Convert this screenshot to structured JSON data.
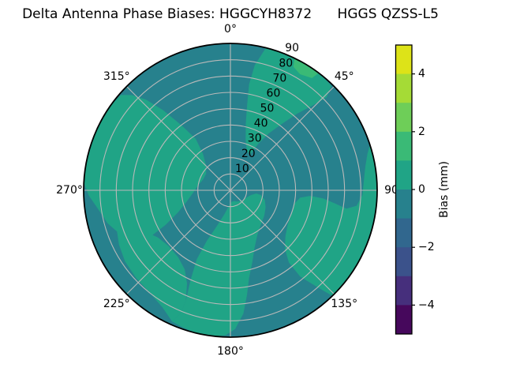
{
  "title": "Delta Antenna Phase Biases: HGGCYH8372      HGGS QZSS-L5",
  "chart_data": {
    "type": "heatmap",
    "subtype": "polar_filled_contour",
    "theta_ticks": [
      {
        "angle": 0,
        "label": "0°"
      },
      {
        "angle": 45,
        "label": "45°"
      },
      {
        "angle": 90,
        "label": "90"
      },
      {
        "angle": 135,
        "label": "135°"
      },
      {
        "angle": 180,
        "label": "180°"
      },
      {
        "angle": 225,
        "label": "225°"
      },
      {
        "angle": 270,
        "label": "270°"
      },
      {
        "angle": 315,
        "label": "315°"
      }
    ],
    "radial_ticks": [
      10,
      20,
      30,
      40,
      50,
      60,
      70,
      80,
      90
    ],
    "radial_max": 90,
    "rlabel_angle_deg": 22.5,
    "grid_color": "#b9b9b9",
    "rim_color": "#000000",
    "base_value_band": "-1 to 0 mm",
    "base_color": "#27818d",
    "regions": [
      {
        "name": "upper-left-lobe",
        "value_band": "0 to 1 mm",
        "color": "#20a486",
        "points": [
          [
            250,
            74
          ],
          [
            255,
            78
          ],
          [
            262,
            82
          ],
          [
            268,
            87
          ],
          [
            273,
            90
          ],
          [
            283,
            90
          ],
          [
            294,
            90
          ],
          [
            305,
            90
          ],
          [
            311,
            89
          ],
          [
            314,
            84
          ],
          [
            317,
            76
          ],
          [
            320,
            64
          ],
          [
            323,
            50
          ],
          [
            326,
            38
          ],
          [
            323,
            28
          ],
          [
            315,
            21
          ],
          [
            304,
            18
          ],
          [
            292,
            18
          ],
          [
            279,
            20
          ],
          [
            266,
            23
          ],
          [
            255,
            28
          ],
          [
            247,
            35
          ],
          [
            242,
            45
          ],
          [
            240,
            56
          ],
          [
            241,
            66
          ],
          [
            245,
            72
          ]
        ]
      },
      {
        "name": "lower-left-band",
        "value_band": "0 to 1 mm",
        "color": "#20a486",
        "points": [
          [
            204,
            88
          ],
          [
            210,
            83
          ],
          [
            218,
            80
          ],
          [
            227,
            79
          ],
          [
            236,
            78
          ],
          [
            244,
            76
          ],
          [
            250,
            74
          ],
          [
            248,
            66
          ],
          [
            244,
            58
          ],
          [
            237,
            53
          ],
          [
            228,
            51
          ],
          [
            218,
            52
          ],
          [
            210,
            56
          ],
          [
            205,
            63
          ],
          [
            202,
            73
          ],
          [
            202,
            81
          ]
        ]
      },
      {
        "name": "bottom-tongue-and-center",
        "value_band": "0 to 1 mm",
        "color": "#20a486",
        "points": [
          [
            186,
            90
          ],
          [
            193,
            90
          ],
          [
            199,
            89
          ],
          [
            204,
            88
          ],
          [
            202,
            81
          ],
          [
            202,
            73
          ],
          [
            204,
            60
          ],
          [
            206,
            47
          ],
          [
            205,
            34
          ],
          [
            201,
            24
          ],
          [
            194,
            15
          ],
          [
            184,
            9
          ],
          [
            173,
            7
          ],
          [
            161,
            7
          ],
          [
            149,
            8
          ],
          [
            137,
            9
          ],
          [
            125,
            10
          ],
          [
            113,
            11
          ],
          [
            103,
            13
          ],
          [
            97,
            16
          ],
          [
            99,
            19
          ],
          [
            106,
            22
          ],
          [
            116,
            24
          ],
          [
            127,
            26
          ],
          [
            138,
            28
          ],
          [
            149,
            32
          ],
          [
            157,
            38
          ],
          [
            163,
            46
          ],
          [
            168,
            55
          ],
          [
            171,
            65
          ],
          [
            174,
            76
          ],
          [
            178,
            85
          ],
          [
            182,
            89
          ]
        ]
      },
      {
        "name": "lower-right-lobe",
        "value_band": "0 to 1 mm",
        "color": "#20a486",
        "points": [
          [
            72,
            90
          ],
          [
            80,
            90
          ],
          [
            88,
            90
          ],
          [
            96,
            90
          ],
          [
            106,
            90
          ],
          [
            116,
            90
          ],
          [
            127,
            90
          ],
          [
            136,
            90
          ],
          [
            138,
            80
          ],
          [
            141,
            68
          ],
          [
            141,
            57
          ],
          [
            137,
            49
          ],
          [
            130,
            44
          ],
          [
            121,
            41
          ],
          [
            111,
            40
          ],
          [
            102,
            40
          ],
          [
            96,
            43
          ],
          [
            94,
            49
          ],
          [
            95,
            57
          ],
          [
            97,
            64
          ],
          [
            99,
            72
          ],
          [
            97,
            78
          ],
          [
            92,
            81
          ],
          [
            86,
            82
          ],
          [
            80,
            84
          ],
          [
            75,
            87
          ]
        ]
      },
      {
        "name": "upper-right-band",
        "value_band": "0 to 1 mm",
        "color": "#20a486",
        "points": [
          [
            14,
            90
          ],
          [
            22,
            90
          ],
          [
            30,
            90
          ],
          [
            38,
            90
          ],
          [
            44,
            89
          ],
          [
            46,
            82
          ],
          [
            44,
            72
          ],
          [
            41,
            62
          ],
          [
            38,
            52
          ],
          [
            34,
            42
          ],
          [
            31,
            33
          ],
          [
            29,
            25
          ],
          [
            23,
            26
          ],
          [
            17,
            32
          ],
          [
            13,
            42
          ],
          [
            11,
            54
          ],
          [
            10,
            66
          ],
          [
            11,
            78
          ]
        ]
      },
      {
        "name": "rim-accent-sliver",
        "value_band": "1 to 2 mm",
        "color": "#3aba76",
        "points": [
          [
            26,
            90
          ],
          [
            31,
            90
          ],
          [
            37,
            90
          ],
          [
            36,
            85
          ],
          [
            31,
            83
          ],
          [
            27,
            85
          ]
        ]
      }
    ],
    "colorbar": {
      "label": "Bias (mm)",
      "vmin": -5,
      "vmax": 5,
      "tick_values": [
        4,
        2,
        0,
        -2,
        -4
      ],
      "tick_labels": [
        "4",
        "2",
        "0",
        "−2",
        "−4"
      ],
      "band_colors_top_to_bottom": [
        "#dde318",
        "#a5db36",
        "#6ece58",
        "#3aba76",
        "#20a486",
        "#27818d",
        "#31678e",
        "#3b528b",
        "#462f7c",
        "#46085c"
      ]
    }
  }
}
